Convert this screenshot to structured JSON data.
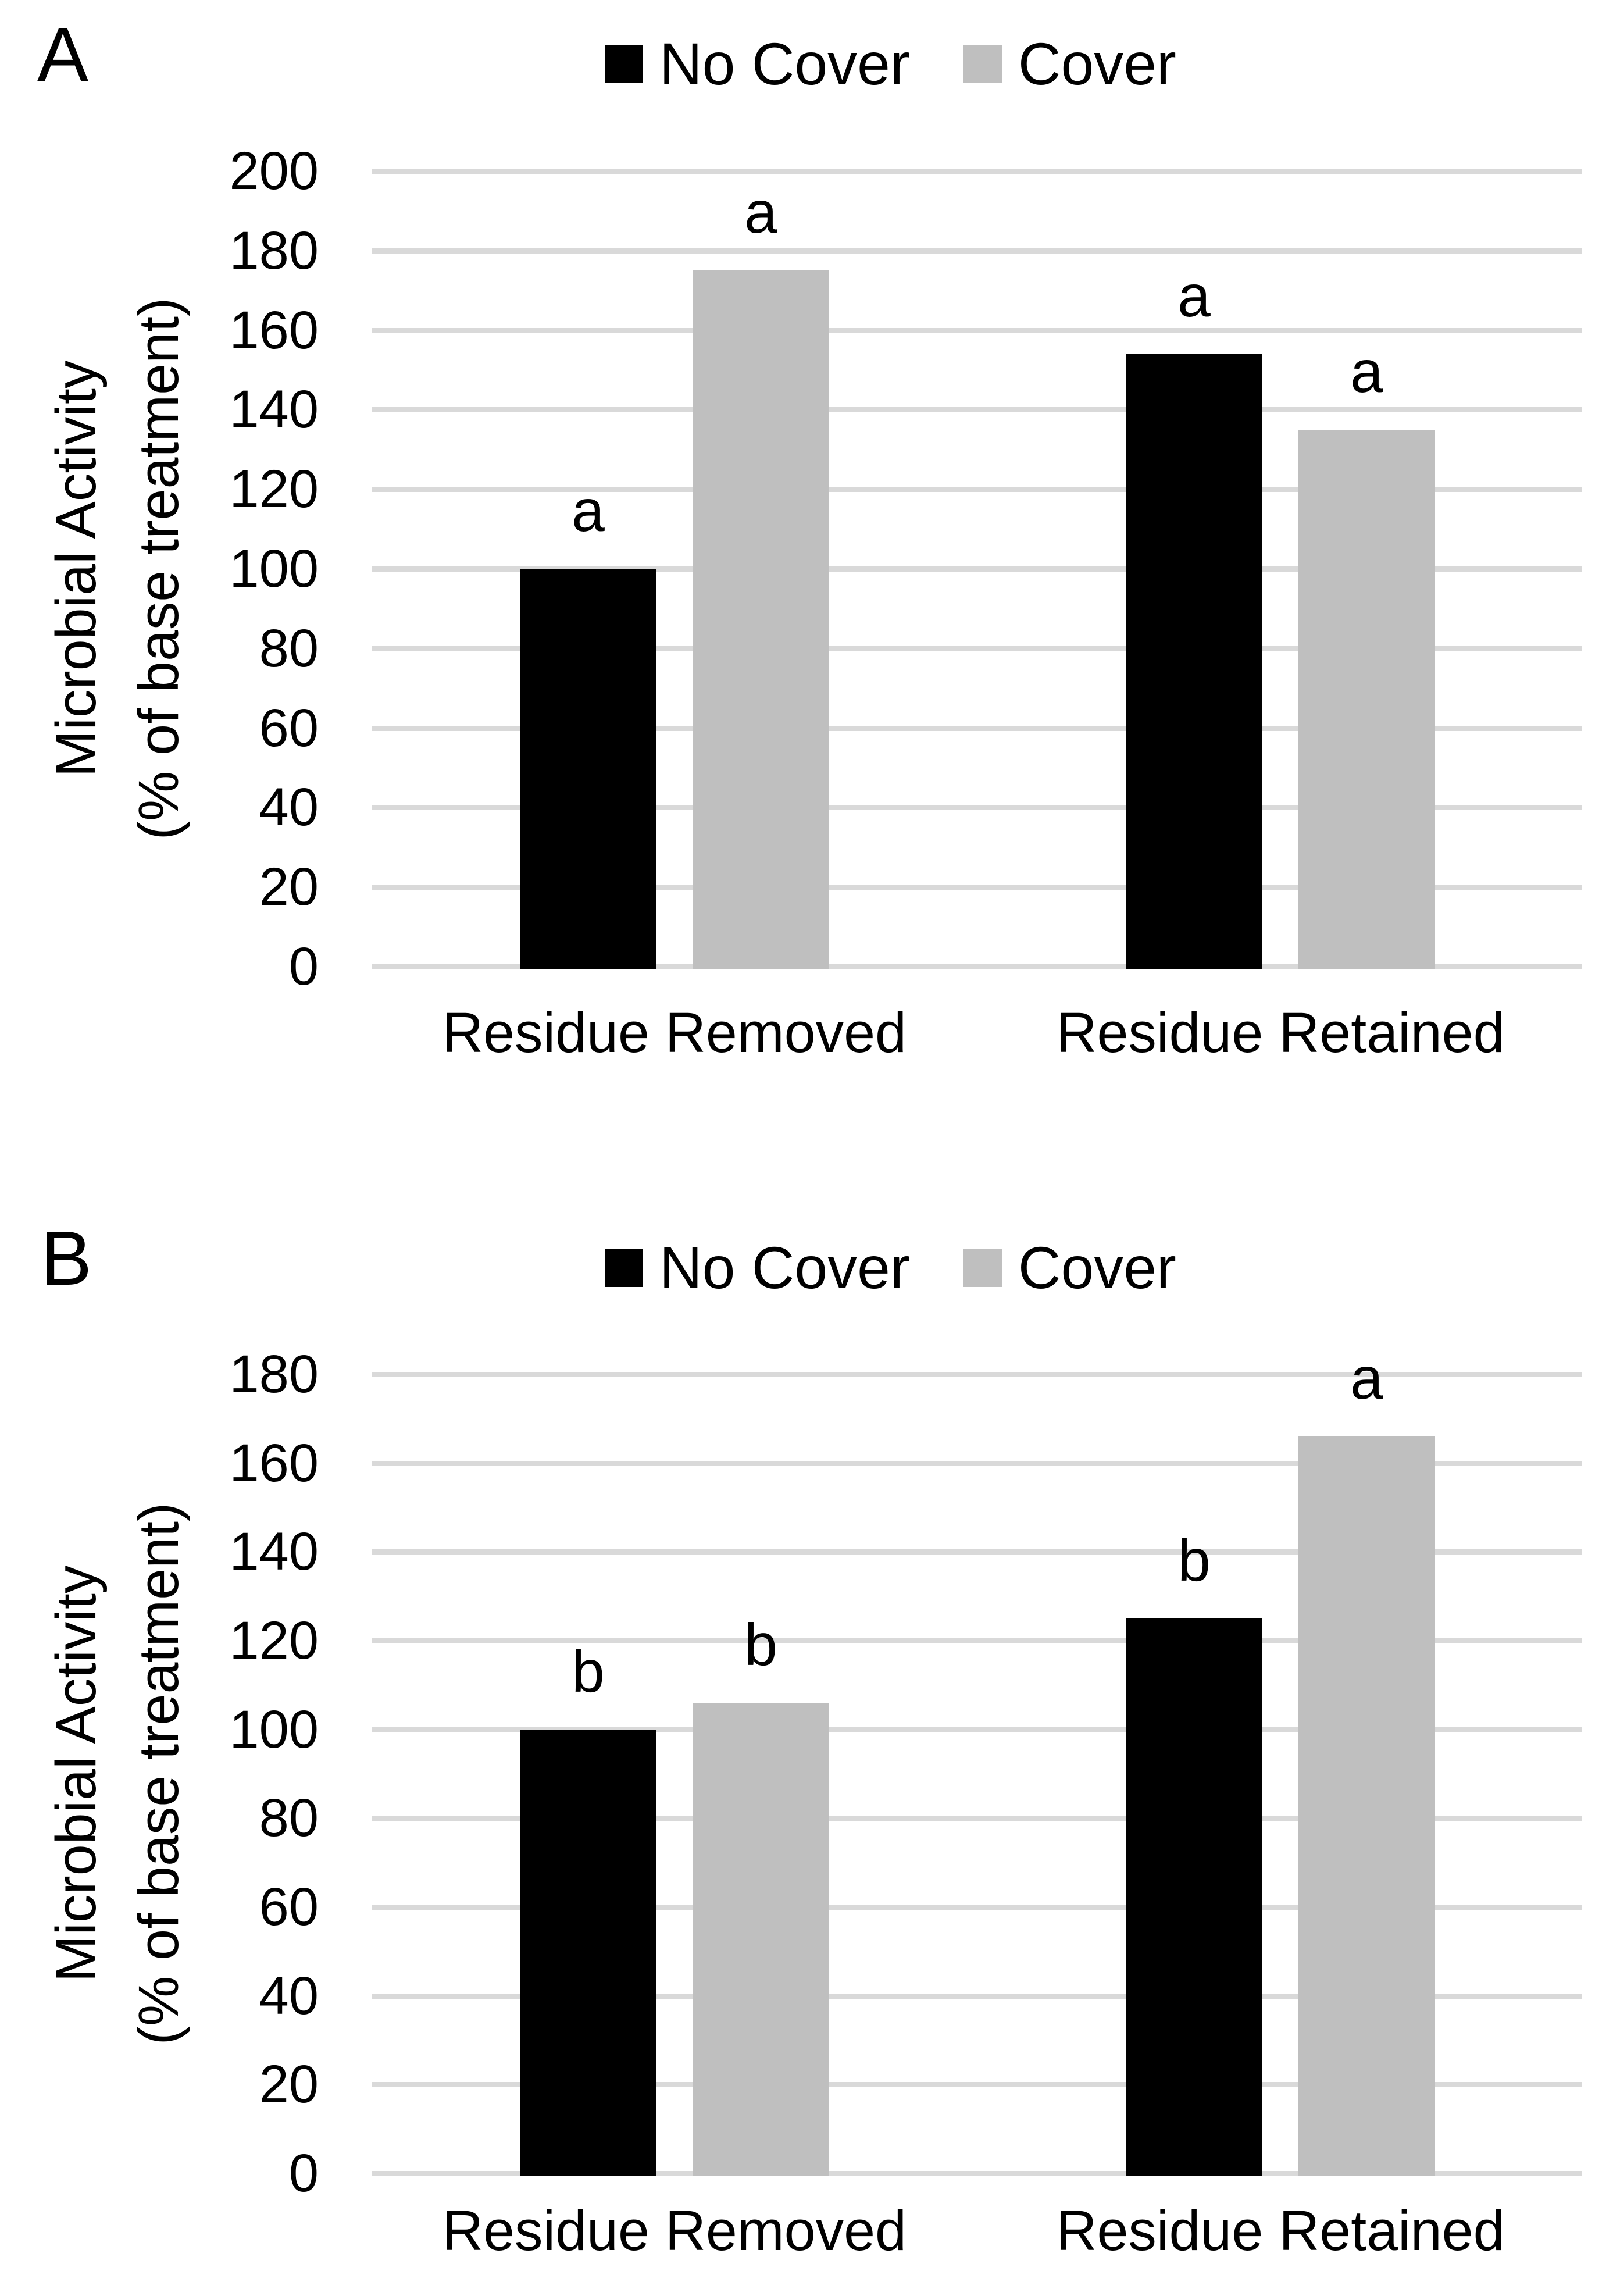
{
  "chart_data": [
    {
      "type": "bar",
      "panel_label": "A",
      "categories": [
        "Residue Removed",
        "Residue Retained"
      ],
      "series": [
        {
          "name": "No Cover",
          "color": "#000000",
          "values": [
            100,
            154
          ],
          "bar_labels": [
            "a",
            "a"
          ]
        },
        {
          "name": "Cover",
          "color": "#bfbfbf",
          "values": [
            175,
            135
          ],
          "bar_labels": [
            "a",
            "a"
          ]
        }
      ],
      "title": "",
      "xlabel": "",
      "ylabel_line1": "Microbial Activity",
      "ylabel_line2": "(% of base treatment)",
      "ylim": [
        0,
        200
      ],
      "ytick_step": 20,
      "ytick_labels": [
        "200",
        "180",
        "160",
        "140",
        "120",
        "100",
        "80",
        "60",
        "40",
        "20",
        "0"
      ],
      "grid": true,
      "legend_position": "top-center"
    },
    {
      "type": "bar",
      "panel_label": "B",
      "categories": [
        "Residue Removed",
        "Residue Retained"
      ],
      "series": [
        {
          "name": "No Cover",
          "color": "#000000",
          "values": [
            100,
            125
          ],
          "bar_labels": [
            "b",
            "b"
          ]
        },
        {
          "name": "Cover",
          "color": "#bfbfbf",
          "values": [
            106,
            166
          ],
          "bar_labels": [
            "b",
            "a"
          ]
        }
      ],
      "title": "",
      "xlabel": "",
      "ylabel_line1": "Microbial Activity",
      "ylabel_line2": "(% of base treatment)",
      "ylim": [
        0,
        180
      ],
      "ytick_step": 20,
      "ytick_labels": [
        "180",
        "160",
        "140",
        "120",
        "100",
        "80",
        "60",
        "40",
        "20",
        "0"
      ],
      "grid": true,
      "legend_position": "top-center"
    }
  ],
  "colors": {
    "grid": "#d9d9d9",
    "bar_no_cover": "#000000",
    "bar_cover": "#bfbfbf",
    "text": "#000000"
  }
}
